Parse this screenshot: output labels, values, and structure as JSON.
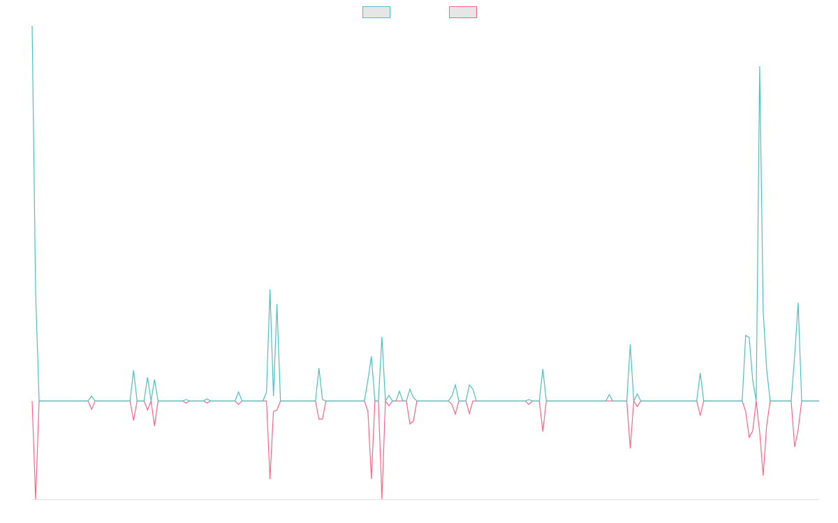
{
  "chart_data": {
    "type": "line",
    "ylim": [
      -141,
      538
    ],
    "legend": "top",
    "series": [
      {
        "color": "#4bc0c0",
        "values": [
          538,
          155,
          0,
          0,
          0,
          0,
          0,
          0,
          0,
          0,
          0,
          0,
          0,
          0,
          0,
          0,
          0,
          7,
          0,
          0,
          0,
          0,
          0,
          0,
          0,
          0,
          0,
          0,
          0,
          44,
          0,
          0,
          0,
          34,
          0,
          31,
          0,
          0,
          0,
          0,
          0,
          0,
          0,
          0,
          2,
          0,
          0,
          0,
          0,
          0,
          3,
          0,
          0,
          0,
          0,
          0,
          0,
          0,
          0,
          13,
          0,
          0,
          0,
          0,
          0,
          0,
          0,
          13,
          160,
          7,
          139,
          0,
          0,
          0,
          0,
          0,
          0,
          0,
          0,
          0,
          0,
          0,
          47,
          2,
          0,
          0,
          0,
          0,
          0,
          0,
          0,
          0,
          0,
          0,
          0,
          0,
          30,
          64,
          0,
          0,
          92,
          0,
          8,
          0,
          0,
          14,
          0,
          0,
          17,
          5,
          0,
          0,
          0,
          0,
          0,
          0,
          0,
          0,
          0,
          0,
          7,
          23,
          0,
          0,
          0,
          23,
          17,
          0,
          0,
          0,
          0,
          0,
          0,
          0,
          0,
          0,
          0,
          0,
          0,
          0,
          0,
          0,
          2,
          0,
          0,
          0,
          46,
          0,
          0,
          0,
          0,
          0,
          0,
          0,
          0,
          0,
          0,
          0,
          0,
          0,
          0,
          0,
          0,
          0,
          0,
          9,
          0,
          0,
          0,
          0,
          0,
          81,
          0,
          10,
          0,
          0,
          0,
          0,
          0,
          0,
          0,
          0,
          0,
          0,
          0,
          0,
          0,
          0,
          0,
          0,
          0,
          40,
          0,
          0,
          0,
          0,
          0,
          0,
          0,
          0,
          0,
          0,
          0,
          0,
          94,
          91,
          30,
          0,
          480,
          129,
          45,
          0,
          0,
          0,
          0,
          0,
          0,
          0,
          65,
          141,
          0,
          0,
          0,
          0,
          0,
          0
        ]
      },
      {
        "color": "#ff6384",
        "values": [
          0,
          -141,
          0,
          0,
          0,
          0,
          0,
          0,
          0,
          0,
          0,
          0,
          0,
          0,
          0,
          0,
          0,
          -12,
          0,
          0,
          0,
          0,
          0,
          0,
          0,
          0,
          0,
          0,
          0,
          -28,
          0,
          0,
          0,
          -13,
          0,
          -36,
          0,
          0,
          0,
          0,
          0,
          0,
          0,
          0,
          -3,
          0,
          0,
          0,
          0,
          0,
          -3,
          0,
          0,
          0,
          0,
          0,
          0,
          0,
          0,
          -5,
          0,
          0,
          0,
          0,
          0,
          0,
          0,
          0,
          -112,
          -15,
          -13,
          0,
          0,
          0,
          0,
          0,
          0,
          0,
          0,
          0,
          0,
          0,
          -26,
          -26,
          0,
          0,
          0,
          0,
          0,
          0,
          0,
          0,
          0,
          0,
          0,
          0,
          -15,
          -112,
          0,
          0,
          -141,
          0,
          -7,
          0,
          0,
          0,
          0,
          0,
          -33,
          -29,
          0,
          0,
          0,
          0,
          0,
          0,
          0,
          0,
          0,
          0,
          -5,
          -19,
          0,
          0,
          0,
          -18,
          0,
          0,
          0,
          0,
          0,
          0,
          0,
          0,
          0,
          0,
          0,
          0,
          0,
          0,
          0,
          0,
          -5,
          0,
          0,
          0,
          -44,
          0,
          0,
          0,
          0,
          0,
          0,
          0,
          0,
          0,
          0,
          0,
          0,
          0,
          0,
          0,
          0,
          0,
          0,
          0,
          0,
          0,
          0,
          0,
          0,
          -68,
          0,
          -8,
          0,
          0,
          0,
          0,
          0,
          0,
          0,
          0,
          0,
          0,
          0,
          0,
          0,
          0,
          0,
          0,
          0,
          -21,
          0,
          0,
          0,
          0,
          0,
          0,
          0,
          0,
          0,
          0,
          0,
          0,
          -15,
          -52,
          -43,
          0,
          -45,
          -107,
          -35,
          0,
          0,
          0,
          0,
          0,
          0,
          0,
          -66,
          -41,
          0,
          0,
          0,
          0,
          0,
          0
        ]
      }
    ]
  }
}
